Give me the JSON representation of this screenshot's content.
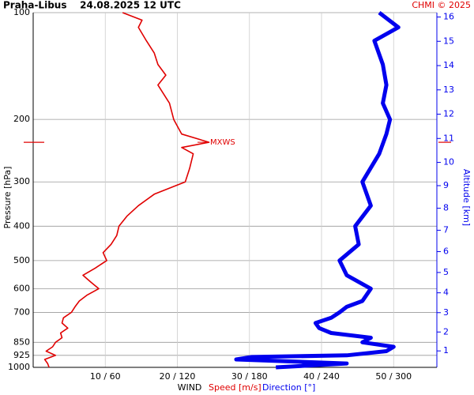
{
  "chart_data": {
    "type": "line",
    "title": "Praha-Libus    24.08.2025 12 UTC",
    "credit": "CHMI © 2025",
    "ylabel": "Pressure [hPa]",
    "y2label": "Altitude [km]",
    "xlabel": "WIND",
    "log_y": true,
    "grid": true,
    "ylim": [
      1000,
      100
    ],
    "yticks": [
      100,
      200,
      300,
      400,
      500,
      600,
      700,
      850,
      925,
      1000
    ],
    "xlim": [
      0,
      56
    ],
    "x2lim": [
      0,
      336
    ],
    "xticks": [
      {
        "value": 10,
        "label": "10 / 60"
      },
      {
        "value": 20,
        "label": "20 / 120"
      },
      {
        "value": 30,
        "label": "30 / 180"
      },
      {
        "value": 40,
        "label": "40 / 240"
      },
      {
        "value": 50,
        "label": "50 / 300"
      }
    ],
    "y2ticks": [
      1,
      2,
      3,
      4,
      5,
      6,
      7,
      8,
      9,
      10,
      11,
      12,
      13,
      14,
      15,
      16
    ],
    "annotation": {
      "text": "MXWS",
      "pressure": 232,
      "color": "#e00000"
    },
    "series": [
      {
        "name": "Speed [m/s]",
        "color": "#e00000",
        "pressure": [
          1000,
          975,
          950,
          925,
          900,
          875,
          850,
          825,
          800,
          775,
          750,
          725,
          700,
          675,
          650,
          625,
          600,
          575,
          550,
          525,
          500,
          475,
          450,
          425,
          400,
          375,
          350,
          325,
          300,
          275,
          250,
          240,
          232,
          220,
          200,
          180,
          160,
          150,
          140,
          130,
          120,
          110,
          105,
          100
        ],
        "values": [
          2.2,
          2,
          1.6,
          3.1,
          1.8,
          2.7,
          3.1,
          4,
          3.8,
          4.8,
          4,
          4.2,
          5.3,
          5.8,
          6.4,
          7.5,
          9.1,
          8,
          6.9,
          8.6,
          10.2,
          9.7,
          10.8,
          11.6,
          11.9,
          13,
          14.6,
          16.8,
          21.1,
          21.7,
          22.2,
          20.6,
          24.4,
          20.6,
          19.5,
          18.9,
          17.3,
          18.4,
          17.3,
          16.8,
          15.7,
          14.6,
          15.1,
          12.4
        ]
      },
      {
        "name": "Direction [°]",
        "color": "#0000ee",
        "axis": "x2",
        "pressure": [
          1000,
          975,
          950,
          935,
          925,
          900,
          875,
          850,
          825,
          800,
          775,
          750,
          725,
          700,
          675,
          650,
          600,
          550,
          500,
          450,
          400,
          350,
          300,
          250,
          220,
          200,
          180,
          160,
          140,
          120,
          110,
          100
        ],
        "values": [
          202,
          261,
          169,
          182,
          261,
          294,
          300,
          274,
          281,
          248,
          238,
          235,
          248,
          255,
          261,
          274,
          281,
          261,
          255,
          271,
          268,
          281,
          274,
          288,
          294,
          297,
          291,
          294,
          291,
          284,
          304,
          288
        ]
      }
    ]
  }
}
